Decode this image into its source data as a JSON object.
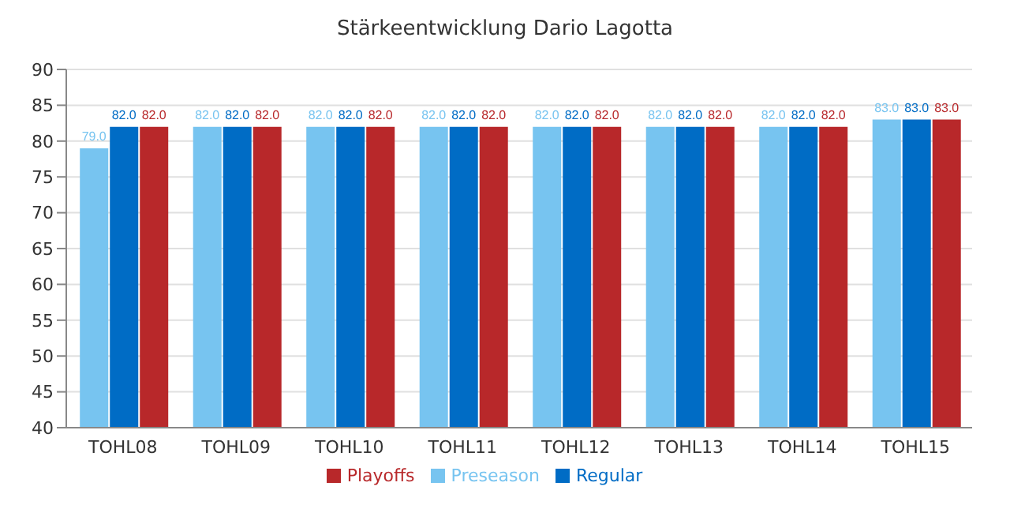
{
  "chart_data": {
    "type": "bar",
    "title": "Stärkeentwicklung Dario Lagotta",
    "categories": [
      "TOHL08",
      "TOHL09",
      "TOHL10",
      "TOHL11",
      "TOHL12",
      "TOHL13",
      "TOHL14",
      "TOHL15"
    ],
    "series": [
      {
        "name": "Preseason",
        "color": "#77c4f0",
        "values": [
          79,
          82,
          82,
          82,
          82,
          82,
          82,
          83
        ],
        "value_labels": [
          "79.0",
          "82.0",
          "82.0",
          "82.0",
          "82.0",
          "82.0",
          "82.0",
          "83.0"
        ]
      },
      {
        "name": "Regular",
        "color": "#006cc5",
        "values": [
          82,
          82,
          82,
          82,
          82,
          82,
          82,
          83
        ],
        "value_labels": [
          "82.0",
          "82.0",
          "82.0",
          "82.0",
          "82.0",
          "82.0",
          "82.0",
          "83.0"
        ]
      },
      {
        "name": "Playoffs",
        "color": "#b8282a",
        "values": [
          82,
          82,
          82,
          82,
          82,
          82,
          82,
          83
        ],
        "value_labels": [
          "82.0",
          "82.0",
          "82.0",
          "82.0",
          "82.0",
          "82.0",
          "82.0",
          "83.0"
        ]
      }
    ],
    "ylim": [
      40,
      90
    ],
    "yticks": [
      40,
      45,
      50,
      55,
      60,
      65,
      70,
      75,
      80,
      85,
      90
    ],
    "grid": "y",
    "legend": "bottom"
  }
}
